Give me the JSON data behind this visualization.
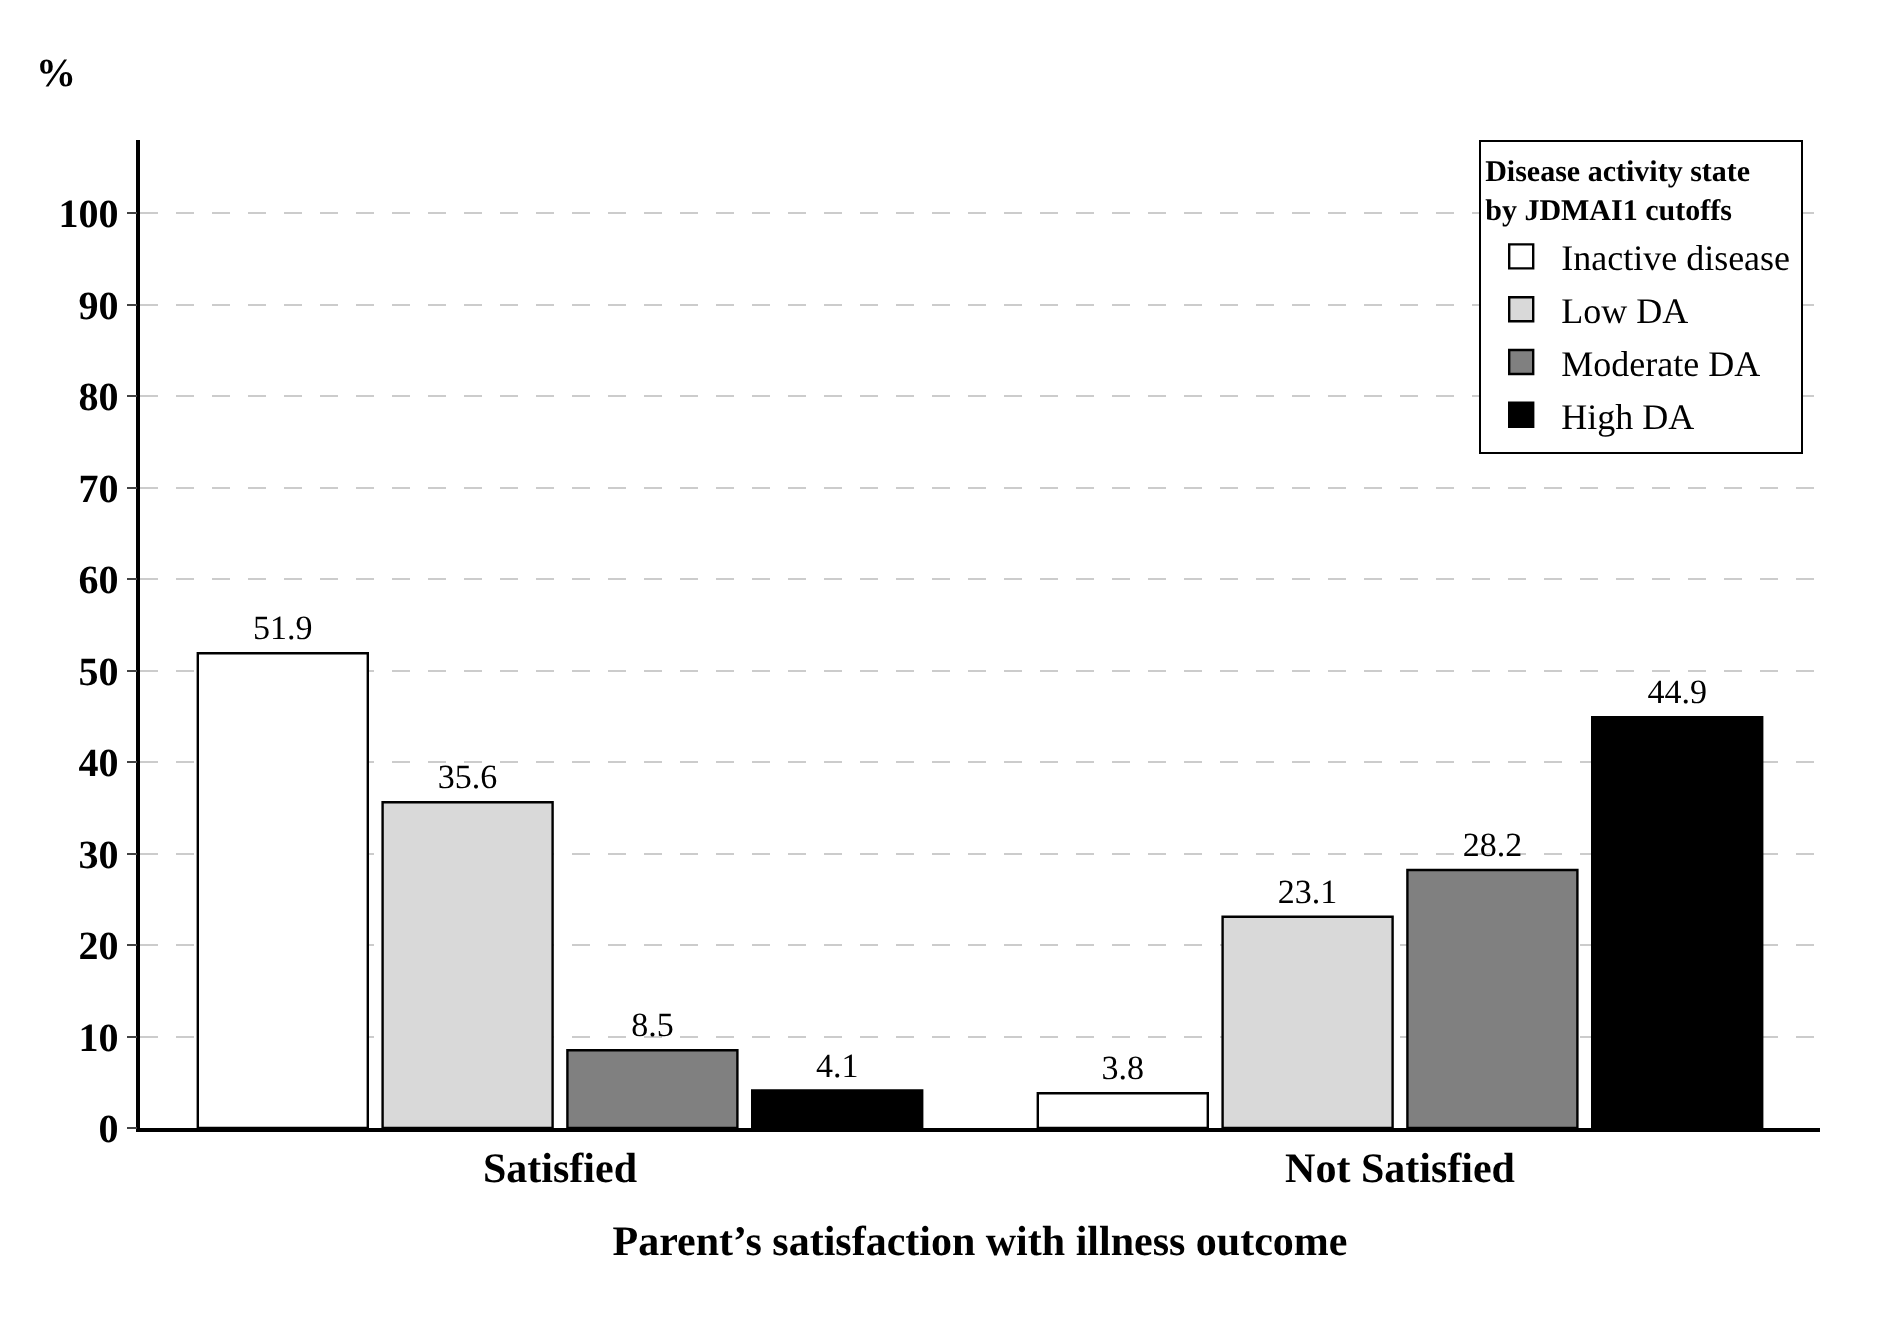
{
  "chart_data": {
    "type": "bar",
    "xlabel": "Parent’s satisfaction with illness outcome",
    "ylabel": "%",
    "legend_title": "Disease activity state by JDMAI1 cutoffs",
    "categories": [
      "Satisfied",
      "Not Satisfied"
    ],
    "series": [
      {
        "name": "Inactive disease",
        "color": "#ffffff",
        "values": [
          51.9,
          3.8
        ]
      },
      {
        "name": "Low DA",
        "color": "#d9d9d9",
        "values": [
          35.6,
          23.1
        ]
      },
      {
        "name": "Moderate DA",
        "color": "#808080",
        "values": [
          8.5,
          28.2
        ]
      },
      {
        "name": "High DA",
        "color": "#000000",
        "values": [
          4.1,
          44.9
        ]
      }
    ],
    "ylim": [
      0,
      108
    ],
    "yticks": [
      0,
      10,
      20,
      30,
      40,
      50,
      60,
      70,
      80,
      90,
      100
    ],
    "grid": "y",
    "legend": "top right",
    "data_labels": true
  }
}
